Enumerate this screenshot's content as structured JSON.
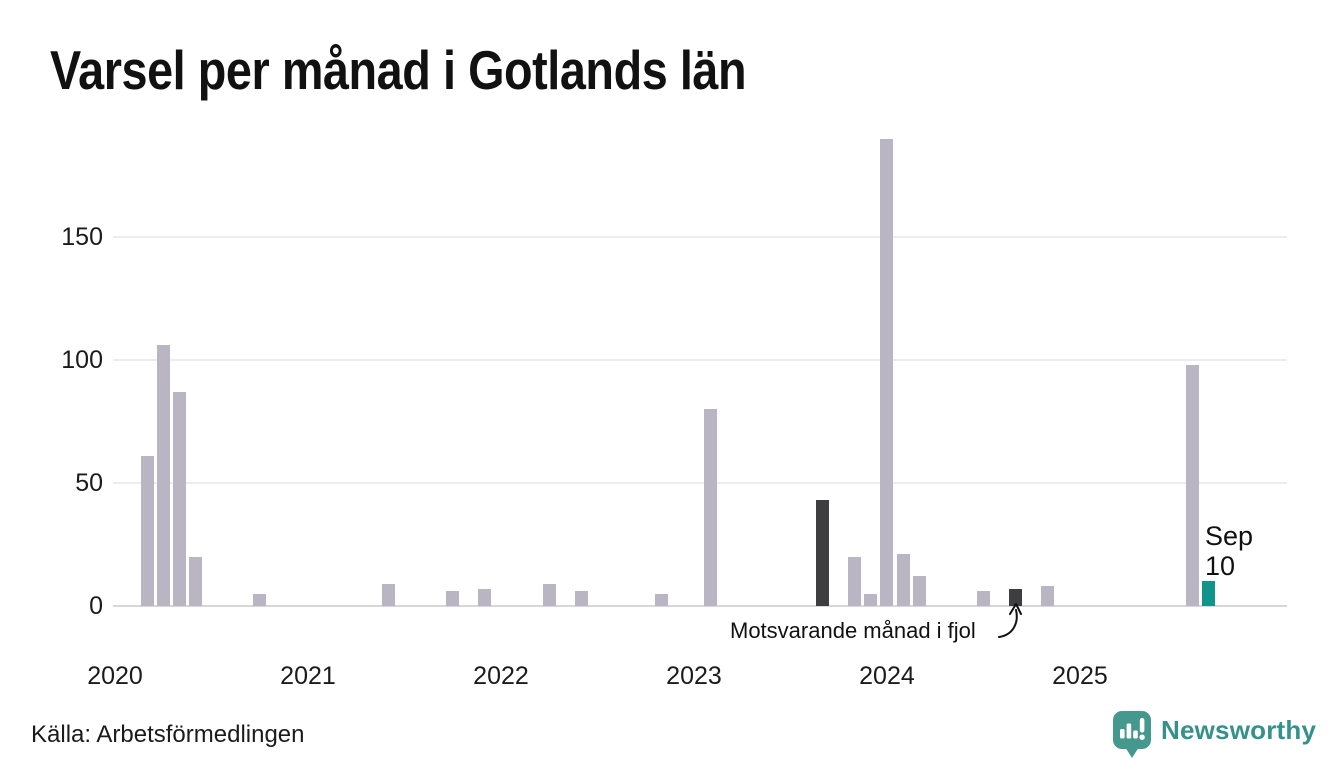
{
  "title": "Varsel per månad i Gotlands län",
  "source": "Källa: Arbetsförmedlingen",
  "annotation": "Motsvarande månad i fjol",
  "current_point_label": {
    "line1": "Sep",
    "line2": "10"
  },
  "logo": {
    "text": "Newsworthy",
    "icon": "newsworthy-speech-bubble-chart-icon"
  },
  "colors": {
    "bar_normal": "#b9b5c3",
    "bar_prior_year": "#3e3e40",
    "bar_current": "#119489",
    "gridline": "#ececf0",
    "baseline": "#d7d7db",
    "logo_teal": "#45988e",
    "logo_text_teal": "#37918b",
    "text": "#1b1b1b"
  },
  "chart_data": {
    "type": "bar",
    "title": "Varsel per månad i Gotlands län",
    "xlabel": "",
    "ylabel": "",
    "ylim": [
      0,
      195
    ],
    "yticks": [
      0,
      50,
      100,
      150
    ],
    "x_years": [
      2020,
      2021,
      2022,
      2023,
      2024,
      2025
    ],
    "grid": "horizontal",
    "legend": "none",
    "bars": [
      {
        "month": "2020-03",
        "value": 61,
        "kind": "normal"
      },
      {
        "month": "2020-04",
        "value": 106,
        "kind": "normal"
      },
      {
        "month": "2020-05",
        "value": 87,
        "kind": "normal"
      },
      {
        "month": "2020-06",
        "value": 20,
        "kind": "normal"
      },
      {
        "month": "2020-10",
        "value": 5,
        "kind": "normal"
      },
      {
        "month": "2021-06",
        "value": 9,
        "kind": "normal"
      },
      {
        "month": "2021-10",
        "value": 6,
        "kind": "normal"
      },
      {
        "month": "2021-12",
        "value": 7,
        "kind": "normal"
      },
      {
        "month": "2022-04",
        "value": 9,
        "kind": "normal"
      },
      {
        "month": "2022-06",
        "value": 6,
        "kind": "normal"
      },
      {
        "month": "2022-11",
        "value": 5,
        "kind": "normal"
      },
      {
        "month": "2023-02",
        "value": 80,
        "kind": "normal"
      },
      {
        "month": "2023-09",
        "value": 43,
        "kind": "prior_year"
      },
      {
        "month": "2023-11",
        "value": 20,
        "kind": "normal"
      },
      {
        "month": "2023-12",
        "value": 5,
        "kind": "normal"
      },
      {
        "month": "2024-01",
        "value": 190,
        "kind": "normal"
      },
      {
        "month": "2024-02",
        "value": 21,
        "kind": "normal"
      },
      {
        "month": "2024-03",
        "value": 12,
        "kind": "normal"
      },
      {
        "month": "2024-07",
        "value": 6,
        "kind": "normal"
      },
      {
        "month": "2024-09",
        "value": 7,
        "kind": "prior_year"
      },
      {
        "month": "2024-11",
        "value": 8,
        "kind": "normal"
      },
      {
        "month": "2025-08",
        "value": 98,
        "kind": "normal"
      },
      {
        "month": "2025-09",
        "value": 10,
        "kind": "current"
      }
    ],
    "annotations": [
      {
        "text": "Motsvarande månad i fjol",
        "points_to": "2024-09"
      },
      {
        "text": "Sep 10",
        "points_to": "2025-09"
      }
    ]
  }
}
